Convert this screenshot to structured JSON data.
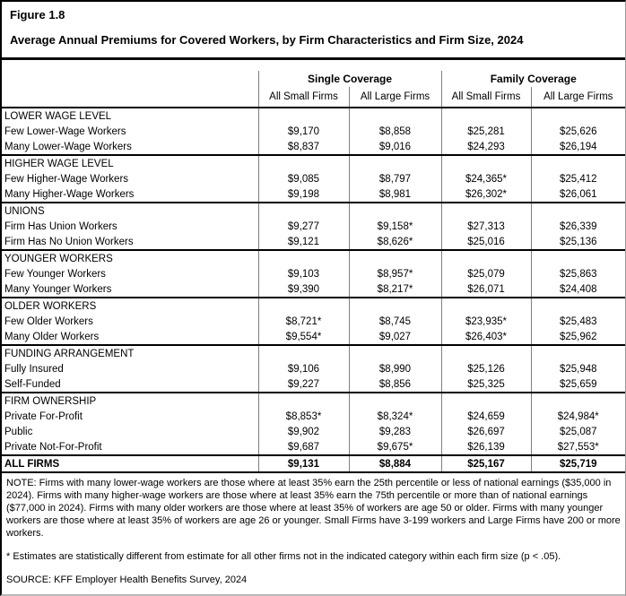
{
  "figure": {
    "label": "Figure 1.8",
    "title": "Average Annual Premiums for Covered Workers, by Firm Characteristics and Firm Size, 2024"
  },
  "table": {
    "col_groups": [
      "Single Coverage",
      "Family Coverage"
    ],
    "col_headers": [
      "All Small Firms",
      "All Large Firms",
      "All Small Firms",
      "All Large Firms"
    ],
    "sections": [
      {
        "header": "LOWER WAGE LEVEL",
        "rows": [
          {
            "label": "Few Lower-Wage Workers",
            "values": [
              "$9,170",
              "$8,858",
              "$25,281",
              "$25,626"
            ]
          },
          {
            "label": "Many Lower-Wage Workers",
            "values": [
              "$8,837",
              "$9,016",
              "$24,293",
              "$26,194"
            ]
          }
        ]
      },
      {
        "header": "HIGHER WAGE LEVEL",
        "rows": [
          {
            "label": "Few Higher-Wage Workers",
            "values": [
              "$9,085",
              "$8,797",
              "$24,365*",
              "$25,412"
            ]
          },
          {
            "label": "Many Higher-Wage Workers",
            "values": [
              "$9,198",
              "$8,981",
              "$26,302*",
              "$26,061"
            ]
          }
        ]
      },
      {
        "header": "UNIONS",
        "rows": [
          {
            "label": "Firm Has Union Workers",
            "values": [
              "$9,277",
              "$9,158*",
              "$27,313",
              "$26,339"
            ]
          },
          {
            "label": "Firm Has No Union Workers",
            "values": [
              "$9,121",
              "$8,626*",
              "$25,016",
              "$25,136"
            ]
          }
        ]
      },
      {
        "header": "YOUNGER WORKERS",
        "rows": [
          {
            "label": "Few Younger Workers",
            "values": [
              "$9,103",
              "$8,957*",
              "$25,079",
              "$25,863"
            ]
          },
          {
            "label": "Many Younger Workers",
            "values": [
              "$9,390",
              "$8,217*",
              "$26,071",
              "$24,408"
            ]
          }
        ]
      },
      {
        "header": "OLDER WORKERS",
        "rows": [
          {
            "label": "Few Older Workers",
            "values": [
              "$8,721*",
              "$8,745",
              "$23,935*",
              "$25,483"
            ]
          },
          {
            "label": "Many Older Workers",
            "values": [
              "$9,554*",
              "$9,027",
              "$26,403*",
              "$25,962"
            ]
          }
        ]
      },
      {
        "header": "FUNDING ARRANGEMENT",
        "rows": [
          {
            "label": "Fully Insured",
            "values": [
              "$9,106",
              "$8,990",
              "$25,126",
              "$25,948"
            ]
          },
          {
            "label": "Self-Funded",
            "values": [
              "$9,227",
              "$8,856",
              "$25,325",
              "$25,659"
            ]
          }
        ]
      },
      {
        "header": "FIRM OWNERSHIP",
        "rows": [
          {
            "label": "Private For-Profit",
            "values": [
              "$8,853*",
              "$8,324*",
              "$24,659",
              "$24,984*"
            ]
          },
          {
            "label": "Public",
            "values": [
              "$9,902",
              "$9,283",
              "$26,697",
              "$25,087"
            ]
          },
          {
            "label": "Private Not-For-Profit",
            "values": [
              "$9,687",
              "$9,675*",
              "$26,139",
              "$27,553*"
            ]
          }
        ]
      }
    ],
    "total_row": {
      "label": "ALL FIRMS",
      "values": [
        "$9,131",
        "$8,884",
        "$25,167",
        "$25,719"
      ]
    }
  },
  "footnotes": {
    "note": "NOTE: Firms with many lower-wage workers are those where at least 35% earn the 25th percentile or less of national earnings ($35,000 in 2024). Firms with many higher-wage workers are those where at least 35% earn the 75th percentile or more than of national earnings ($77,000 in 2024). Firms with many older workers are those where at least 35% of workers are age 50 or older. Firms with many younger workers are those where at least 35% of workers are age 26 or younger. Small Firms have 3-199 workers and Large Firms have 200 or more workers.",
    "asterisk": "* Estimates are statistically different from estimate for all other firms not in the indicated category within each firm size (p < .05).",
    "source": "SOURCE: KFF Employer Health Benefits Survey, 2024"
  }
}
